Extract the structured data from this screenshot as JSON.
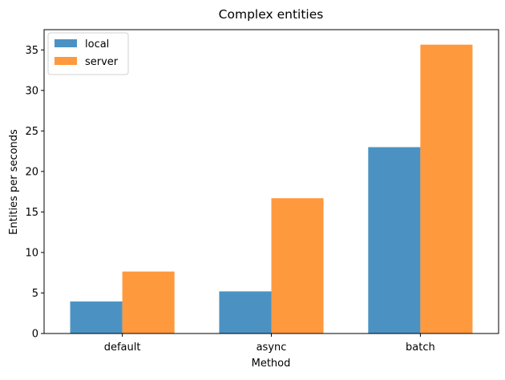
{
  "chart_data": {
    "type": "bar",
    "title": "Complex entities",
    "xlabel": "Method",
    "ylabel": "Entities per seconds",
    "categories": [
      "default",
      "async",
      "batch"
    ],
    "series": [
      {
        "name": "local",
        "values": [
          3.95,
          5.2,
          23.0
        ],
        "color": "#4b92c3"
      },
      {
        "name": "server",
        "values": [
          7.65,
          16.7,
          35.65
        ],
        "color": "#ff993e"
      }
    ],
    "ylim": [
      0,
      37.5
    ],
    "yticks": [
      0,
      5,
      10,
      15,
      20,
      25,
      30,
      35
    ],
    "legend_position": "top-left",
    "grid": false
  }
}
